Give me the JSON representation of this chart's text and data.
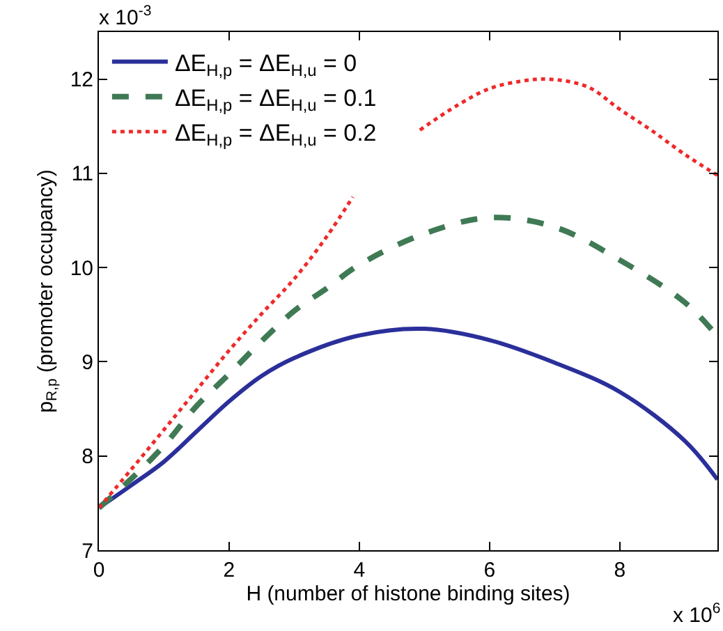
{
  "chart_data": {
    "type": "line",
    "xlabel": "H (number of histone binding sites)",
    "ylabel": "p$_{R,p}$ (promoter occupancy)",
    "annotations": [
      "x 10$^{-3}$",
      "x 10$^{6}$"
    ],
    "xlim": [
      0,
      9.5
    ],
    "xticks": [
      0,
      2,
      4,
      6,
      8
    ],
    "ylim": [
      7,
      12.5
    ],
    "yticks": [
      7,
      8,
      9,
      10,
      11,
      12
    ],
    "legend": "top left",
    "series": [
      {
        "name": "ΔE$_{H,p}$ = ΔE$_{H,u}$ = 0",
        "color": "#2b2f9a",
        "line_style": "solid",
        "x": [
          0,
          0.5,
          1,
          1.5,
          2,
          2.5,
          3,
          4,
          5,
          6,
          7,
          8,
          9,
          9.5
        ],
        "values": [
          7.45,
          7.69,
          7.94,
          8.26,
          8.58,
          8.85,
          9.04,
          9.28,
          9.35,
          9.23,
          8.99,
          8.68,
          8.16,
          7.75
        ]
      },
      {
        "name": "ΔE$_{H,p}$ = ΔE$_{H,u}$ = 0.1",
        "color": "#3f7a55",
        "line_style": "dashed",
        "x": [
          0,
          0.5,
          1,
          1.5,
          2,
          2.5,
          3,
          3.5,
          4,
          5,
          6,
          7,
          8,
          9,
          9.5
        ],
        "values": [
          7.45,
          7.76,
          8.11,
          8.53,
          8.87,
          9.22,
          9.54,
          9.78,
          10.03,
          10.36,
          10.53,
          10.43,
          10.08,
          9.63,
          9.27
        ]
      },
      {
        "name": "ΔE$_{H,p}$ = ΔE$_{H,u}$ = 0.2",
        "color": "#ee2a2a",
        "line_style": "dotted",
        "x": [
          0,
          0.5,
          1,
          1.5,
          2,
          2.5,
          3,
          3.5,
          3.9,
          4.4,
          4.93,
          5.5,
          6,
          6.5,
          6.9,
          7.5,
          8,
          8.5,
          9,
          9.5
        ],
        "values": [
          7.45,
          7.86,
          8.28,
          8.7,
          9.12,
          9.51,
          9.88,
          10.33,
          10.75,
          null,
          11.46,
          11.72,
          11.9,
          11.98,
          12.0,
          11.92,
          11.68,
          11.45,
          11.2,
          10.98
        ]
      }
    ]
  }
}
